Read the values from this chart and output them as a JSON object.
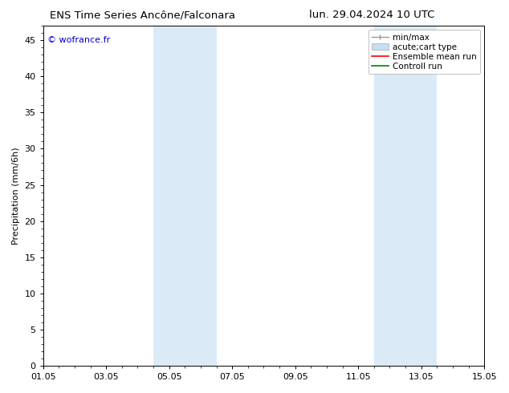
{
  "title_left": "ENS Time Series Ancône/Falconara",
  "title_right": "lun. 29.04.2024 10 UTC",
  "ylabel": "Precipitation (mm/6h)",
  "watermark": "© wofrance.fr",
  "watermark_color": "#0000cc",
  "xlim_start": 0,
  "xlim_end": 14,
  "ylim_min": 0,
  "ylim_max": 47,
  "yticks": [
    0,
    5,
    10,
    15,
    20,
    25,
    30,
    35,
    40,
    45
  ],
  "xtick_labels": [
    "01.05",
    "03.05",
    "05.05",
    "07.05",
    "09.05",
    "11.05",
    "13.05",
    "15.05"
  ],
  "xtick_positions": [
    0,
    2,
    4,
    6,
    8,
    10,
    12,
    14
  ],
  "shaded_regions": [
    {
      "xmin": 3.5,
      "xmax": 5.5,
      "color": "#daeaf7"
    },
    {
      "xmin": 10.5,
      "xmax": 12.5,
      "color": "#daeaf7"
    }
  ],
  "bg_color": "#ffffff",
  "plot_bg_color": "#ffffff",
  "legend_entries": [
    {
      "label": "min/max",
      "color": "#999999",
      "lw": 1,
      "type": "errorbar"
    },
    {
      "label": "acute;cart type",
      "color": "#c8dff0",
      "lw": 6,
      "type": "bar"
    },
    {
      "label": "Ensemble mean run",
      "color": "#ff0000",
      "lw": 1.2,
      "type": "line"
    },
    {
      "label": "Controll run",
      "color": "#008000",
      "lw": 1.2,
      "type": "line"
    }
  ],
  "font_size_title": 9.5,
  "font_size_ticks": 8,
  "font_size_ylabel": 8,
  "font_size_legend": 7.5,
  "font_size_watermark": 8
}
